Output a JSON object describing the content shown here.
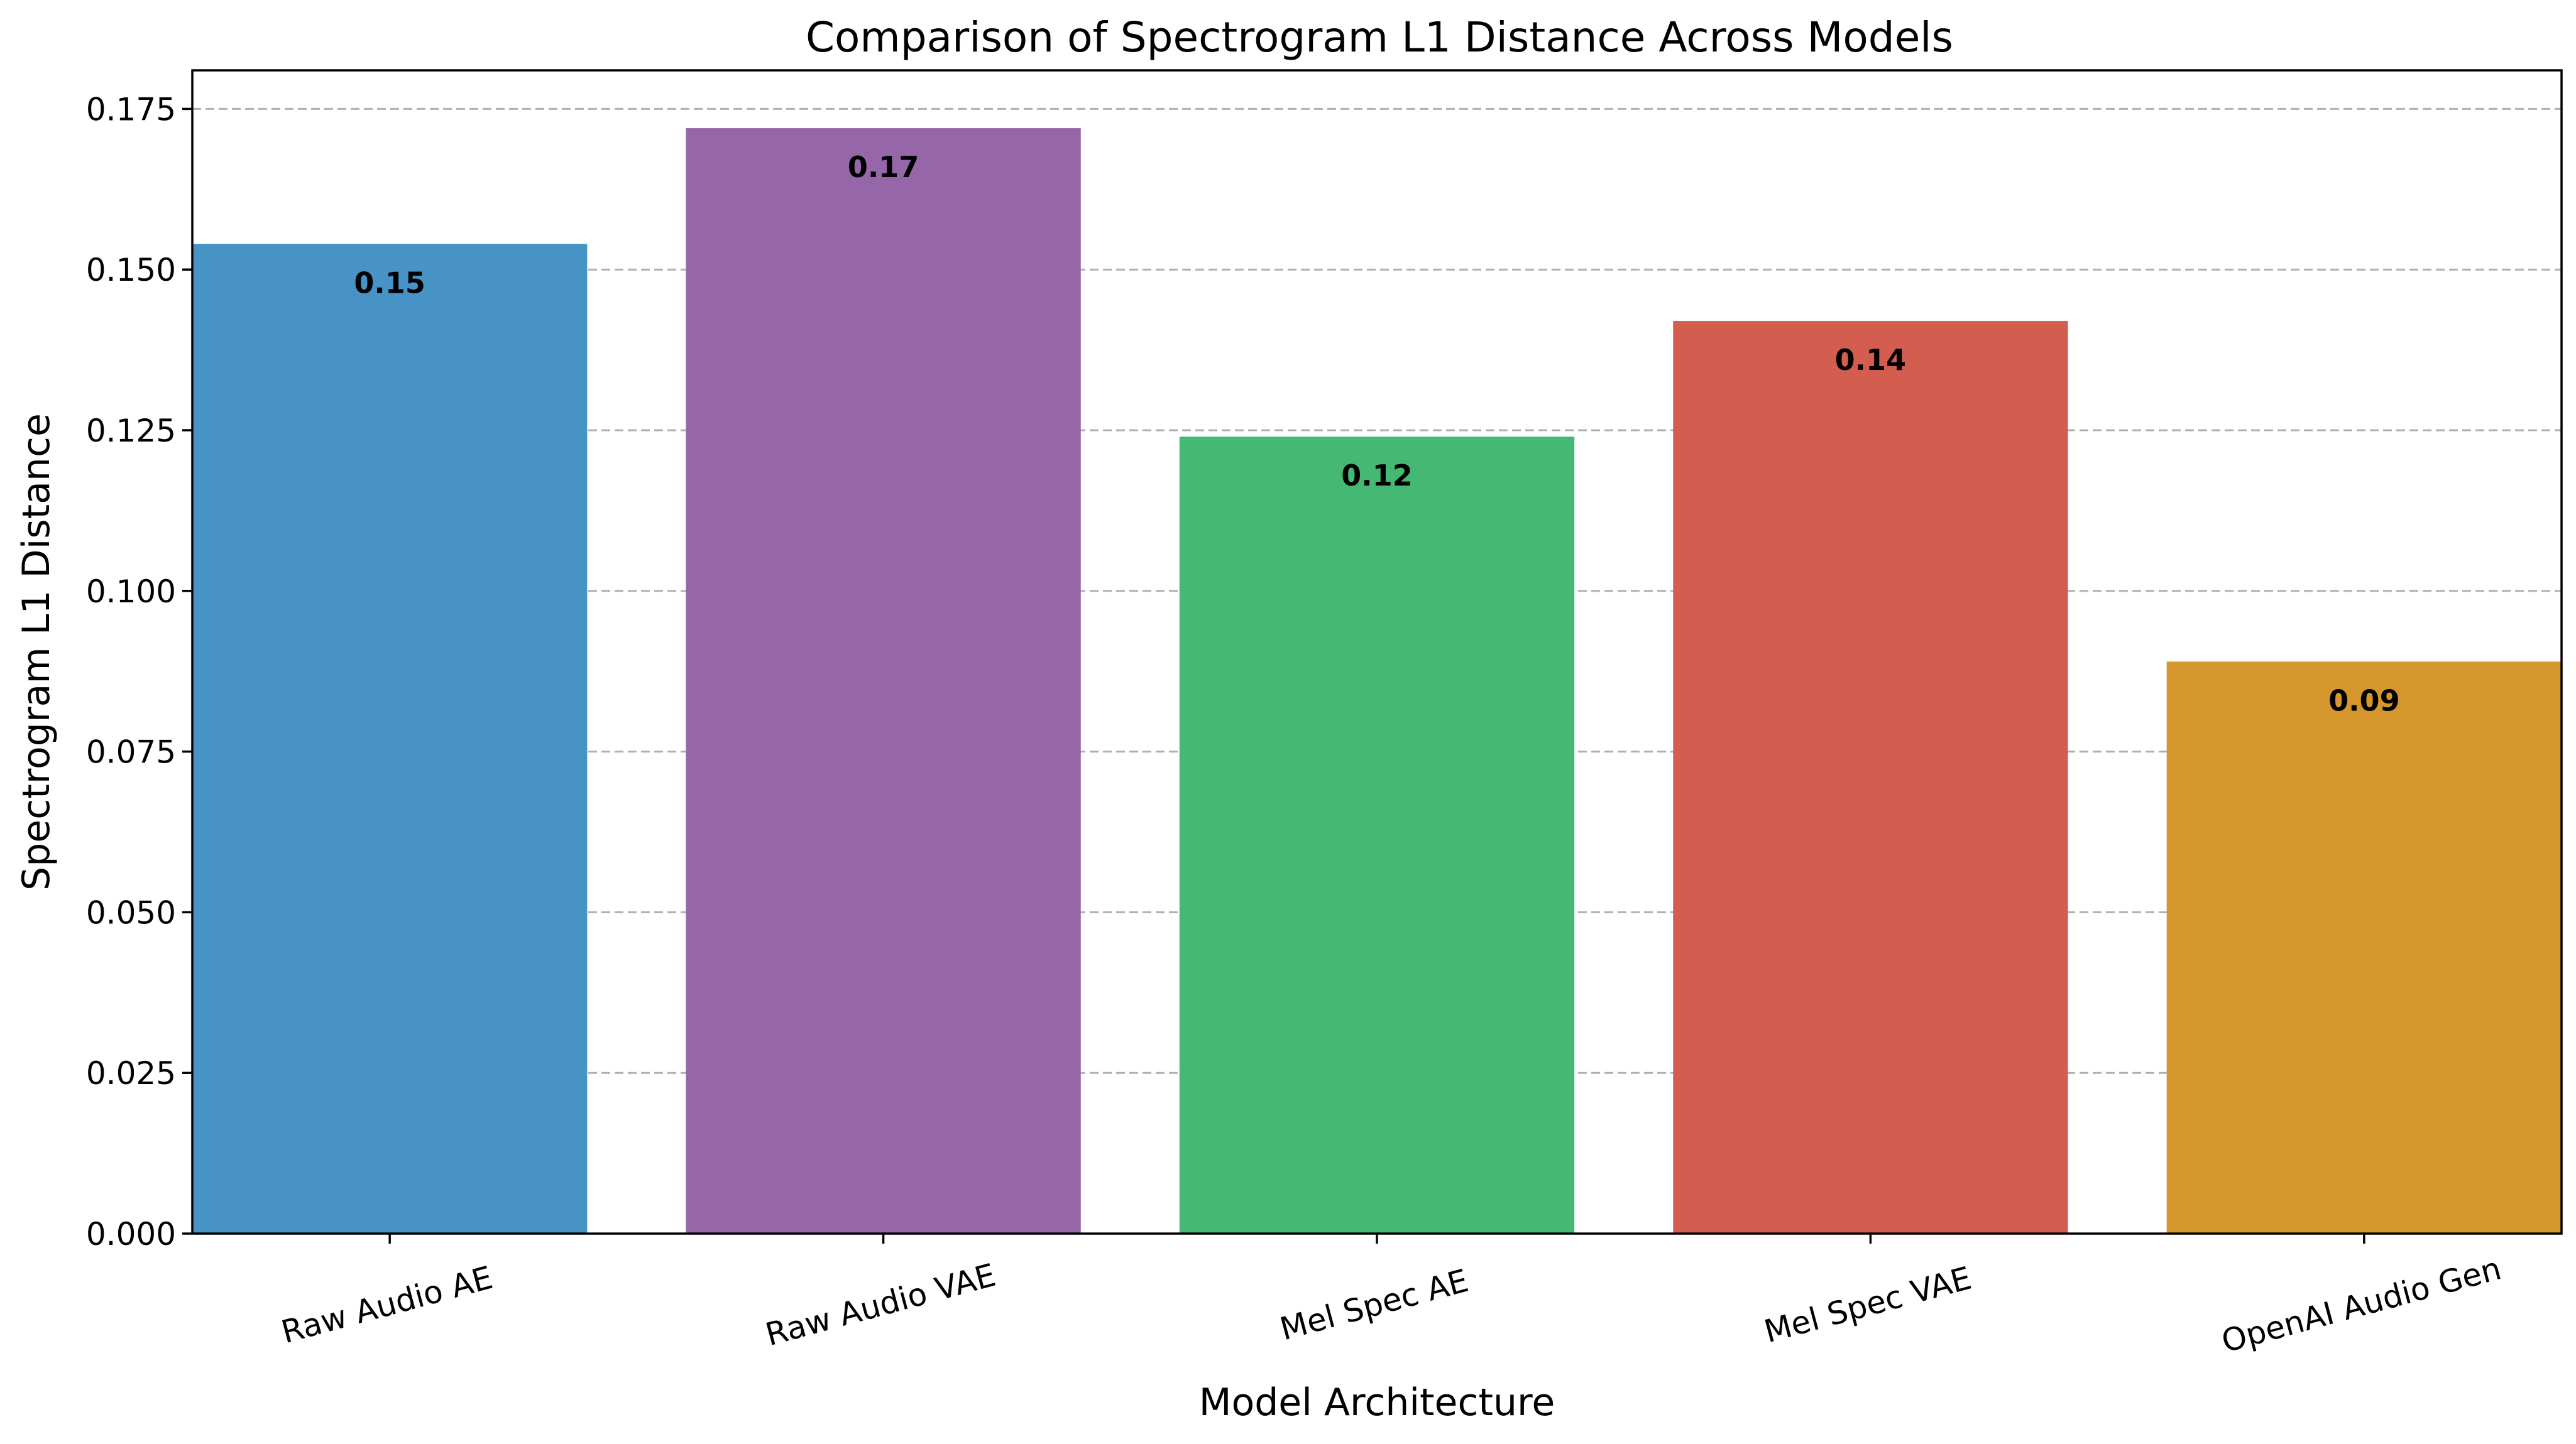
{
  "chart_data": {
    "type": "bar",
    "title": "Comparison of Spectrogram L1 Distance Across Models",
    "xlabel": "Model Architecture",
    "ylabel": "Spectrogram L1 Distance",
    "categories": [
      "Raw Audio AE",
      "Raw Audio VAE",
      "Mel Spec AE",
      "Mel Spec VAE",
      "OpenAI Audio Gen"
    ],
    "values": [
      0.154,
      0.172,
      0.124,
      0.142,
      0.089
    ],
    "data_labels": [
      "0.15",
      "0.17",
      "0.12",
      "0.14",
      "0.09"
    ],
    "colors": [
      "#4793c6",
      "#9566a8",
      "#45b874",
      "#d35e50",
      "#d5962e"
    ],
    "ylim": [
      0,
      0.181
    ],
    "yticks": [
      0.0,
      0.025,
      0.05,
      0.075,
      0.1,
      0.125,
      0.15,
      0.175
    ],
    "ytick_labels": [
      "0.000",
      "0.025",
      "0.050",
      "0.075",
      "0.100",
      "0.125",
      "0.150",
      "0.175"
    ],
    "grid": "y, dashed",
    "xtick_rotation_deg": 15
  }
}
